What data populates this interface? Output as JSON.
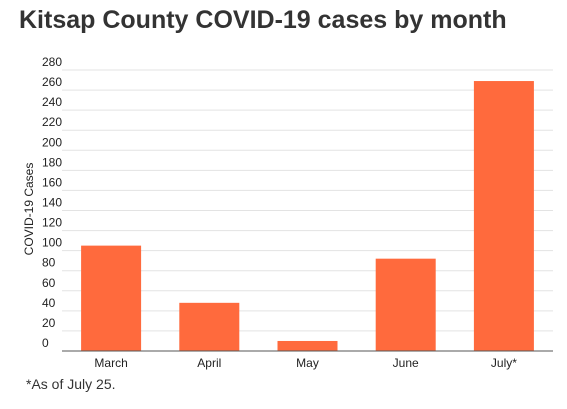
{
  "title": "Kitsap County COVID-19 cases by month",
  "note": "*As of July 25.",
  "colors": {
    "bar": "#ff6a3d",
    "grid": "#e3e3e3",
    "axis": "#555555",
    "text": "#222222"
  },
  "chart_data": {
    "type": "bar",
    "categories": [
      "March",
      "April",
      "May",
      "June",
      "July*"
    ],
    "values": [
      105,
      48,
      10,
      92,
      269
    ],
    "xlabel": "",
    "ylabel": "COVID-19 Cases",
    "ylim": [
      0,
      280
    ],
    "yticks": [
      0,
      20,
      40,
      60,
      80,
      100,
      120,
      140,
      160,
      180,
      200,
      220,
      240,
      260,
      280
    ],
    "grid": true,
    "legend": "none"
  }
}
